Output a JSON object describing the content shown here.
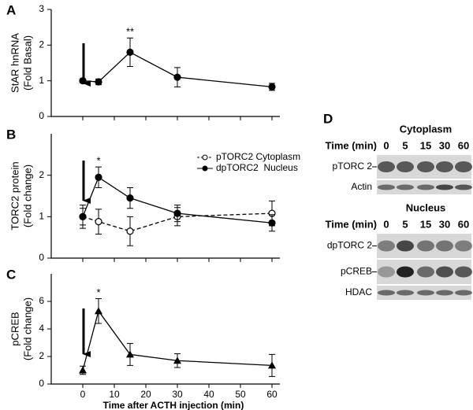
{
  "chart_data": [
    {
      "type": "line",
      "label": "A",
      "ylabel": [
        "StAR hnRNA",
        "(Fold Basal)"
      ],
      "x": [
        0,
        5,
        15,
        30,
        60
      ],
      "xlim": [
        -10,
        62.5
      ],
      "xticks": [
        0,
        10,
        20,
        30,
        40,
        50,
        60
      ],
      "ylim": [
        0,
        3
      ],
      "yticks": [
        0,
        1,
        2,
        3
      ],
      "series": [
        {
          "color": "#000000",
          "marker": "circle-filled",
          "linestyle": "solid",
          "values": [
            1.0,
            0.97,
            1.8,
            1.1,
            0.83
          ],
          "errors": [
            0.06,
            0.08,
            0.4,
            0.27,
            0.1
          ]
        }
      ],
      "annotations": [
        {
          "text": "**",
          "x": 15
        }
      ]
    },
    {
      "type": "line",
      "label": "B",
      "ylabel": [
        "TORC2 protein",
        "(Fold change)"
      ],
      "x": [
        0,
        5,
        15,
        30,
        60
      ],
      "xlim": [
        -10,
        62.5
      ],
      "xticks": [
        0,
        10,
        20,
        30,
        40,
        50,
        60
      ],
      "ylim": [
        0,
        3
      ],
      "yticks": [
        0,
        1,
        2
      ],
      "legend": "upper right",
      "series": [
        {
          "name": "pTORC2 Cytoplasm",
          "color": "#000000",
          "marker": "circle-open",
          "linestyle": "dashed",
          "values": [
            1.0,
            0.88,
            0.65,
            1.0,
            1.08
          ],
          "errors": [
            0.28,
            0.3,
            0.35,
            0.22,
            0.3
          ]
        },
        {
          "name": "dpTORC2  Nucleus",
          "color": "#000000",
          "marker": "circle-filled",
          "linestyle": "solid",
          "values": [
            1.0,
            1.95,
            1.45,
            1.08,
            0.85
          ],
          "errors": [
            0.2,
            0.25,
            0.25,
            0.2,
            0.2
          ]
        }
      ],
      "annotations": [
        {
          "text": "*",
          "x": 5
        }
      ]
    },
    {
      "type": "line",
      "label": "C",
      "ylabel": [
        "pCREB",
        "(Fold change)"
      ],
      "xlabel": "Time after ACTH injection (min)",
      "xtick_labels": true,
      "x": [
        0,
        5,
        15,
        30,
        60
      ],
      "xlim": [
        -10,
        62.5
      ],
      "xticks": [
        0,
        10,
        20,
        30,
        40,
        50,
        60
      ],
      "ylim": [
        0,
        8
      ],
      "yticks": [
        0,
        2,
        4,
        6
      ],
      "series": [
        {
          "color": "#000000",
          "marker": "triangle",
          "linestyle": "solid",
          "values": [
            1.0,
            5.3,
            2.15,
            1.7,
            1.35
          ],
          "errors": [
            0.3,
            0.9,
            0.8,
            0.5,
            0.8
          ]
        }
      ],
      "annotations": [
        {
          "text": "*",
          "x": 5
        }
      ]
    }
  ],
  "blot": {
    "label": "D",
    "sections": [
      {
        "title": "Cytoplasm",
        "time_label": "Time (min)",
        "times": [
          0,
          5,
          15,
          30,
          60
        ],
        "rows": [
          "pTORC 2",
          "Actin"
        ]
      },
      {
        "title": "Nucleus",
        "time_label": "Time (min)",
        "times": [
          0,
          5,
          15,
          30,
          60
        ],
        "rows": [
          "dpTORC 2",
          "pCREB",
          "HDAC"
        ]
      }
    ]
  }
}
